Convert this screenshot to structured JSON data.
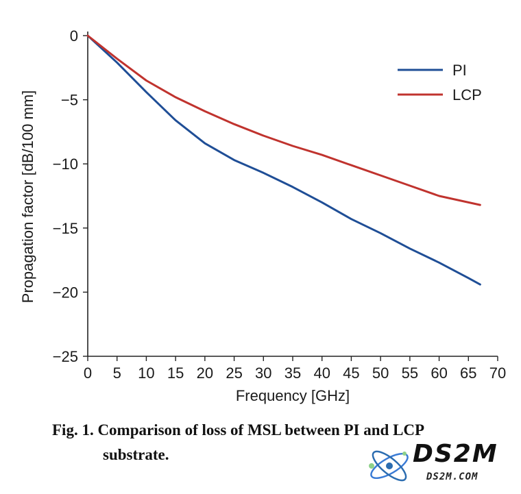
{
  "chart_data": {
    "type": "line",
    "title": "",
    "xlabel": "Frequency [GHz]",
    "ylabel": "Propagation factor [dB/100 mm]",
    "xlim": [
      0,
      70
    ],
    "ylim": [
      -25,
      0
    ],
    "xticks": [
      0,
      5,
      10,
      15,
      20,
      25,
      30,
      35,
      40,
      45,
      50,
      55,
      60,
      65,
      70
    ],
    "yticks": [
      0,
      -5,
      -10,
      -15,
      -20,
      -25
    ],
    "ytick_labels": [
      "0",
      "−5",
      "−10",
      "−15",
      "−20",
      "−25"
    ],
    "grid": false,
    "legend_position": "top-right",
    "series": [
      {
        "name": "PI",
        "color": "#1f4e96",
        "x": [
          0,
          5,
          10,
          15,
          20,
          25,
          30,
          35,
          40,
          45,
          50,
          55,
          60,
          65,
          67
        ],
        "values": [
          0,
          -2.1,
          -4.4,
          -6.6,
          -8.4,
          -9.7,
          -10.7,
          -11.8,
          -13.0,
          -14.3,
          -15.4,
          -16.6,
          -17.7,
          -18.9,
          -19.4
        ]
      },
      {
        "name": "LCP",
        "color": "#c0332e",
        "x": [
          0,
          5,
          10,
          15,
          20,
          25,
          30,
          35,
          40,
          45,
          50,
          55,
          60,
          65,
          67
        ],
        "values": [
          0,
          -1.8,
          -3.5,
          -4.8,
          -5.9,
          -6.9,
          -7.8,
          -8.6,
          -9.3,
          -10.1,
          -10.9,
          -11.7,
          -12.5,
          -13.0,
          -13.2
        ]
      }
    ]
  },
  "caption": {
    "line1": "Fig. 1. Comparison of loss of MSL between PI and LCP",
    "line2": "substrate."
  },
  "watermark": {
    "logo_text": "DS2M",
    "url_text": "DS2M.COM"
  }
}
